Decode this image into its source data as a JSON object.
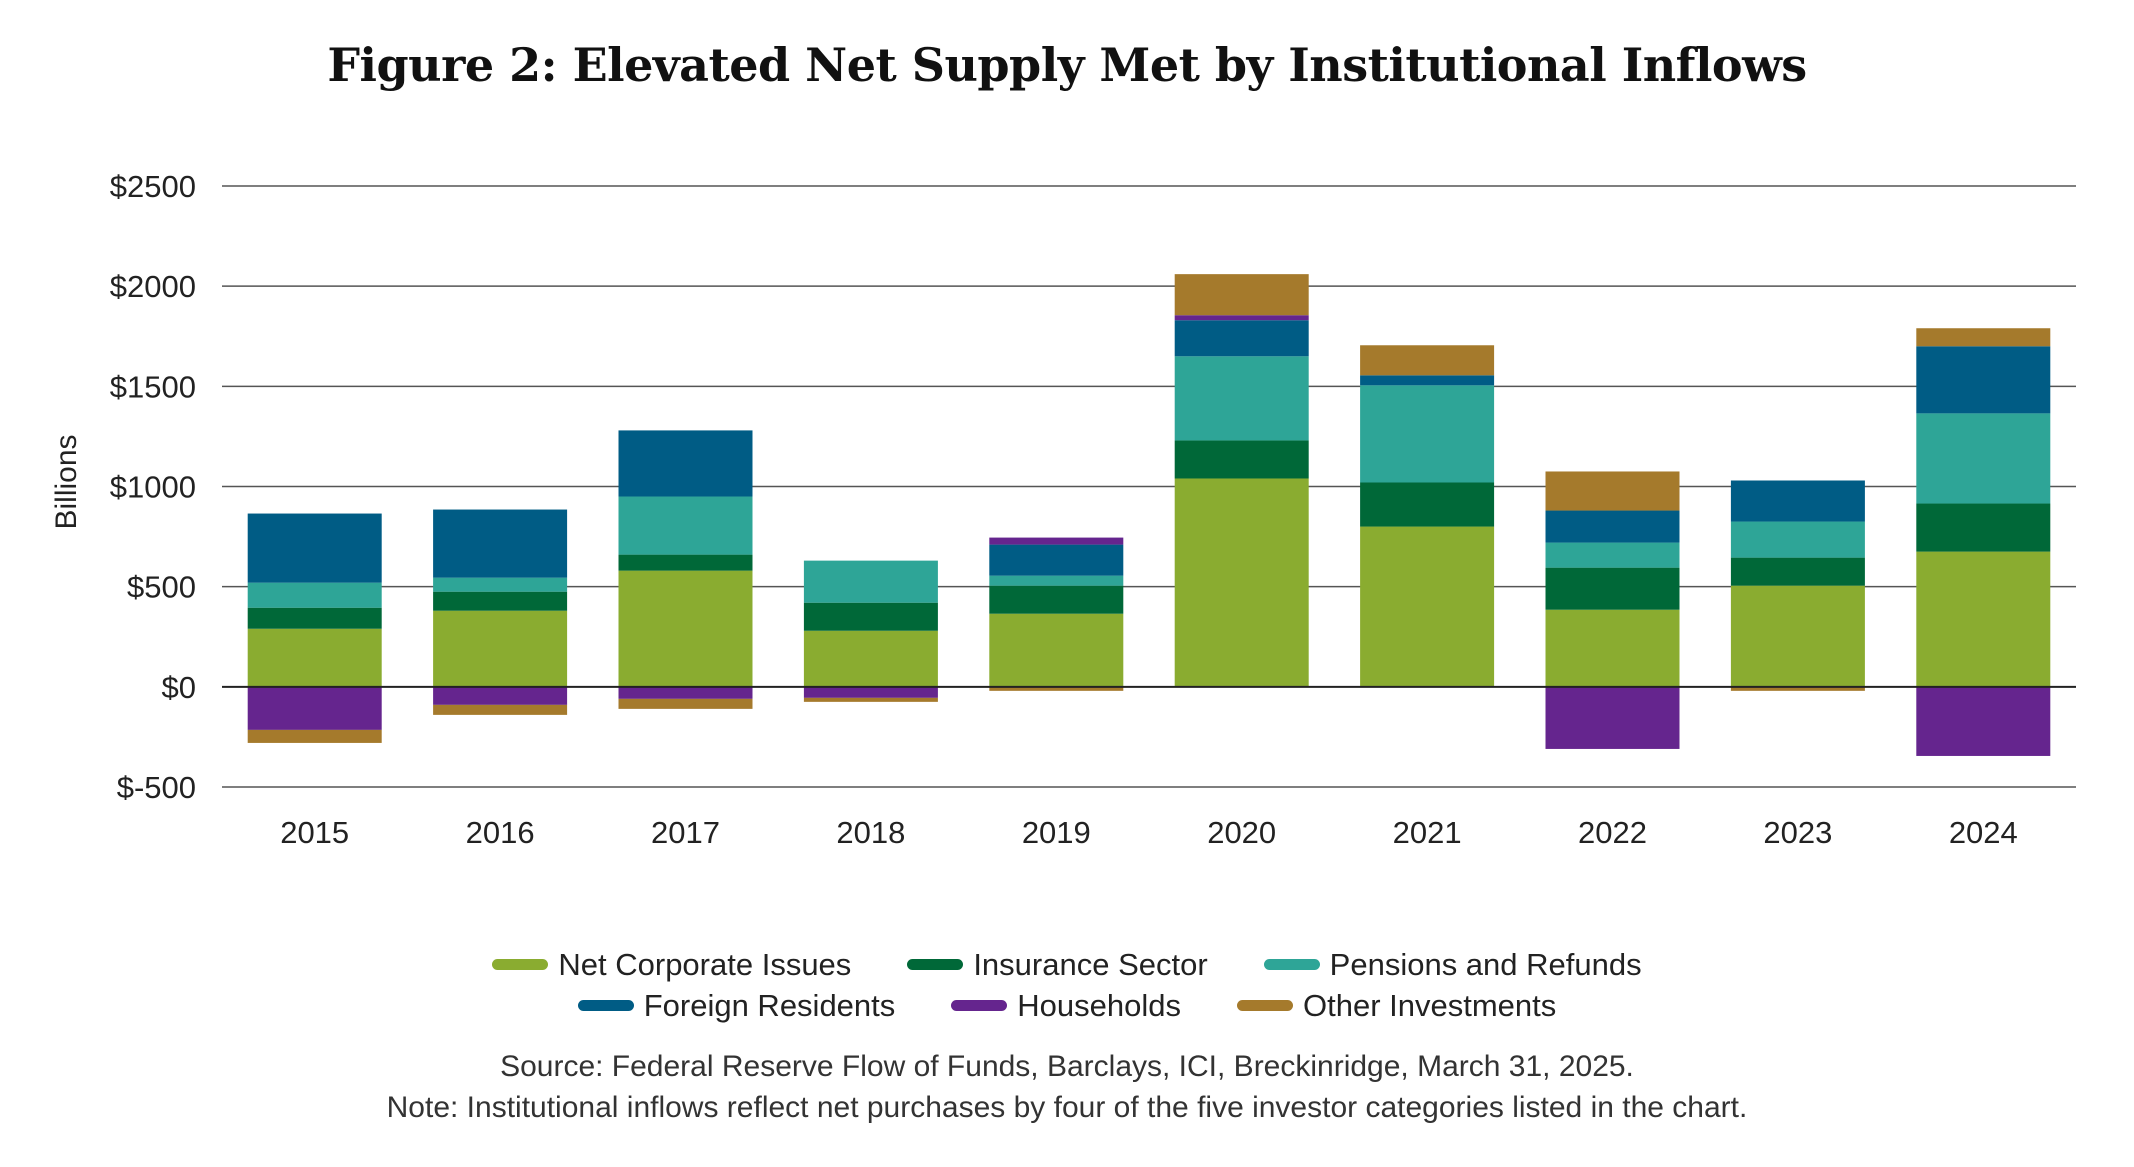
{
  "chart_data": {
    "type": "bar",
    "stacked": true,
    "title": "Figure 2: Elevated Net Supply Met by Institutional Inflows",
    "ylabel": "Billions",
    "xlabel": "",
    "ylim": [
      -500,
      2500
    ],
    "yticks": [
      -500,
      0,
      500,
      1000,
      1500,
      2000,
      2500
    ],
    "ytick_labels": [
      "$-500",
      "$0",
      "$500",
      "$1000",
      "$1500",
      "$2000",
      "$2500"
    ],
    "categories": [
      "2015",
      "2016",
      "2017",
      "2018",
      "2019",
      "2020",
      "2021",
      "2022",
      "2023",
      "2024"
    ],
    "grid": "horizontal",
    "legend_position": "bottom",
    "series": [
      {
        "name": "Net Corporate Issues",
        "color": "#8aac30",
        "values": [
          290,
          380,
          580,
          280,
          365,
          1040,
          800,
          385,
          505,
          675
        ]
      },
      {
        "name": "Insurance Sector",
        "color": "#006838",
        "values": [
          105,
          95,
          80,
          140,
          140,
          190,
          220,
          210,
          140,
          240
        ]
      },
      {
        "name": "Pensions and Refunds",
        "color": "#2ea597",
        "values": [
          125,
          70,
          290,
          210,
          50,
          420,
          485,
          125,
          180,
          450
        ]
      },
      {
        "name": "Foreign Residents",
        "color": "#005c85",
        "values": [
          345,
          340,
          330,
          0,
          155,
          180,
          50,
          160,
          205,
          335
        ]
      },
      {
        "name": "Households",
        "color": "#65258e",
        "values": [
          -215,
          -90,
          -60,
          -55,
          35,
          25,
          0,
          -310,
          0,
          -345
        ]
      },
      {
        "name": "Other Investments",
        "color": "#a57a2c",
        "values": [
          -65,
          -50,
          -50,
          -20,
          -20,
          205,
          150,
          195,
          -20,
          90
        ]
      }
    ]
  },
  "legend": {
    "row1": [
      "Net Corporate Issues",
      "Insurance Sector",
      "Pensions and Refunds"
    ],
    "row2": [
      "Foreign Residents",
      "Households",
      "Other Investments"
    ]
  },
  "source": "Source: Federal Reserve Flow of Funds, Barclays, ICI, Breckinridge, March 31, 2025.",
  "note": "Note: Institutional inflows reflect net purchases by four of the five investor categories listed in the chart."
}
